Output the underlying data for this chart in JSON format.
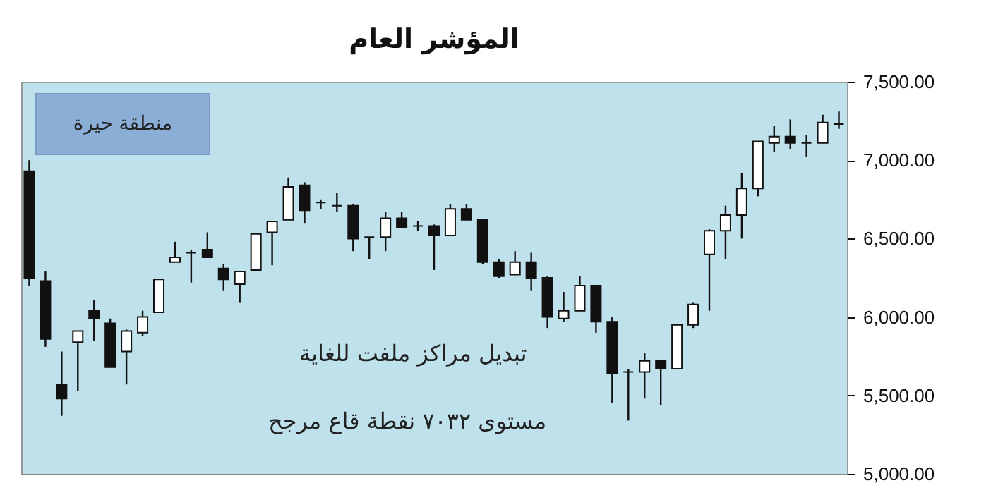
{
  "chart_data": {
    "type": "candlestick",
    "title": "المؤشر العام",
    "categories": [
      null,
      null,
      null,
      null,
      null,
      null,
      null,
      null,
      null,
      null,
      null,
      null,
      null,
      null,
      null,
      null,
      null,
      null,
      null,
      null,
      null,
      null,
      null,
      null,
      null,
      null,
      null,
      null,
      null,
      null,
      null,
      null,
      null,
      null,
      null,
      null,
      null,
      null,
      null,
      null,
      null,
      null,
      null,
      null,
      null,
      null,
      null,
      null,
      null,
      null,
      null
    ],
    "ohlc": [
      [
        6930,
        7000,
        6200,
        6250
      ],
      [
        6230,
        6290,
        5810,
        5860
      ],
      [
        5570,
        5780,
        5370,
        5480
      ],
      [
        5840,
        5910,
        5530,
        5910
      ],
      [
        6040,
        6110,
        5850,
        5990
      ],
      [
        5960,
        5990,
        5680,
        5680
      ],
      [
        5780,
        5920,
        5570,
        5910
      ],
      [
        5900,
        6040,
        5880,
        6000
      ],
      [
        6030,
        6240,
        6030,
        6240
      ],
      [
        6350,
        6480,
        6350,
        6380
      ],
      [
        6410,
        6430,
        6220,
        6410
      ],
      [
        6430,
        6540,
        6380,
        6380
      ],
      [
        6310,
        6340,
        6170,
        6240
      ],
      [
        6210,
        6290,
        6090,
        6290
      ],
      [
        6300,
        6530,
        6300,
        6530
      ],
      [
        6540,
        6610,
        6330,
        6610
      ],
      [
        6620,
        6890,
        6620,
        6830
      ],
      [
        6840,
        6860,
        6600,
        6680
      ],
      [
        6730,
        6750,
        6690,
        6730
      ],
      [
        6710,
        6790,
        6670,
        6710
      ],
      [
        6710,
        6720,
        6420,
        6500
      ],
      [
        6510,
        6510,
        6370,
        6510
      ],
      [
        6510,
        6670,
        6420,
        6630
      ],
      [
        6630,
        6670,
        6570,
        6570
      ],
      [
        6580,
        6610,
        6550,
        6580
      ],
      [
        6580,
        6590,
        6300,
        6520
      ],
      [
        6520,
        6720,
        6520,
        6690
      ],
      [
        6690,
        6720,
        6620,
        6620
      ],
      [
        6620,
        6620,
        6340,
        6350
      ],
      [
        6350,
        6370,
        6250,
        6260
      ],
      [
        6270,
        6420,
        6270,
        6350
      ],
      [
        6350,
        6410,
        6170,
        6250
      ],
      [
        6250,
        6260,
        5930,
        6000
      ],
      [
        5990,
        6160,
        5970,
        6040
      ],
      [
        6040,
        6260,
        6040,
        6200
      ],
      [
        6200,
        6200,
        5900,
        5970
      ],
      [
        5970,
        6000,
        5450,
        5640
      ],
      [
        5650,
        5670,
        5340,
        5650
      ],
      [
        5650,
        5770,
        5480,
        5720
      ],
      [
        5720,
        5720,
        5440,
        5670
      ],
      [
        5670,
        5950,
        5670,
        5950
      ],
      [
        5950,
        6090,
        5930,
        6080
      ],
      [
        6400,
        6560,
        6040,
        6550
      ],
      [
        6550,
        6710,
        6370,
        6650
      ],
      [
        6650,
        6920,
        6500,
        6820
      ],
      [
        6820,
        7120,
        6770,
        7120
      ],
      [
        7110,
        7220,
        7050,
        7150
      ],
      [
        7150,
        7260,
        7070,
        7110
      ],
      [
        7110,
        7160,
        7020,
        7110
      ],
      [
        7110,
        7290,
        7110,
        7240
      ],
      [
        7230,
        7310,
        7200,
        7230
      ]
    ],
    "ylim": [
      5000,
      7500
    ],
    "yticks": [
      {
        "value": 5000,
        "label": "5,000.00"
      },
      {
        "value": 5500,
        "label": "5,500.00"
      },
      {
        "value": 6000,
        "label": "6,000.00"
      },
      {
        "value": 6500,
        "label": "6,500.00"
      },
      {
        "value": 7000,
        "label": "7,000.00"
      },
      {
        "value": 7500,
        "label": "7,500.00"
      }
    ],
    "grid": false,
    "annotations": [
      "منطقة حيرة",
      "تبديل مراكز ملفت للغاية",
      "مستوى ٧٠٣٢ نقطة قاع مرجح"
    ]
  }
}
